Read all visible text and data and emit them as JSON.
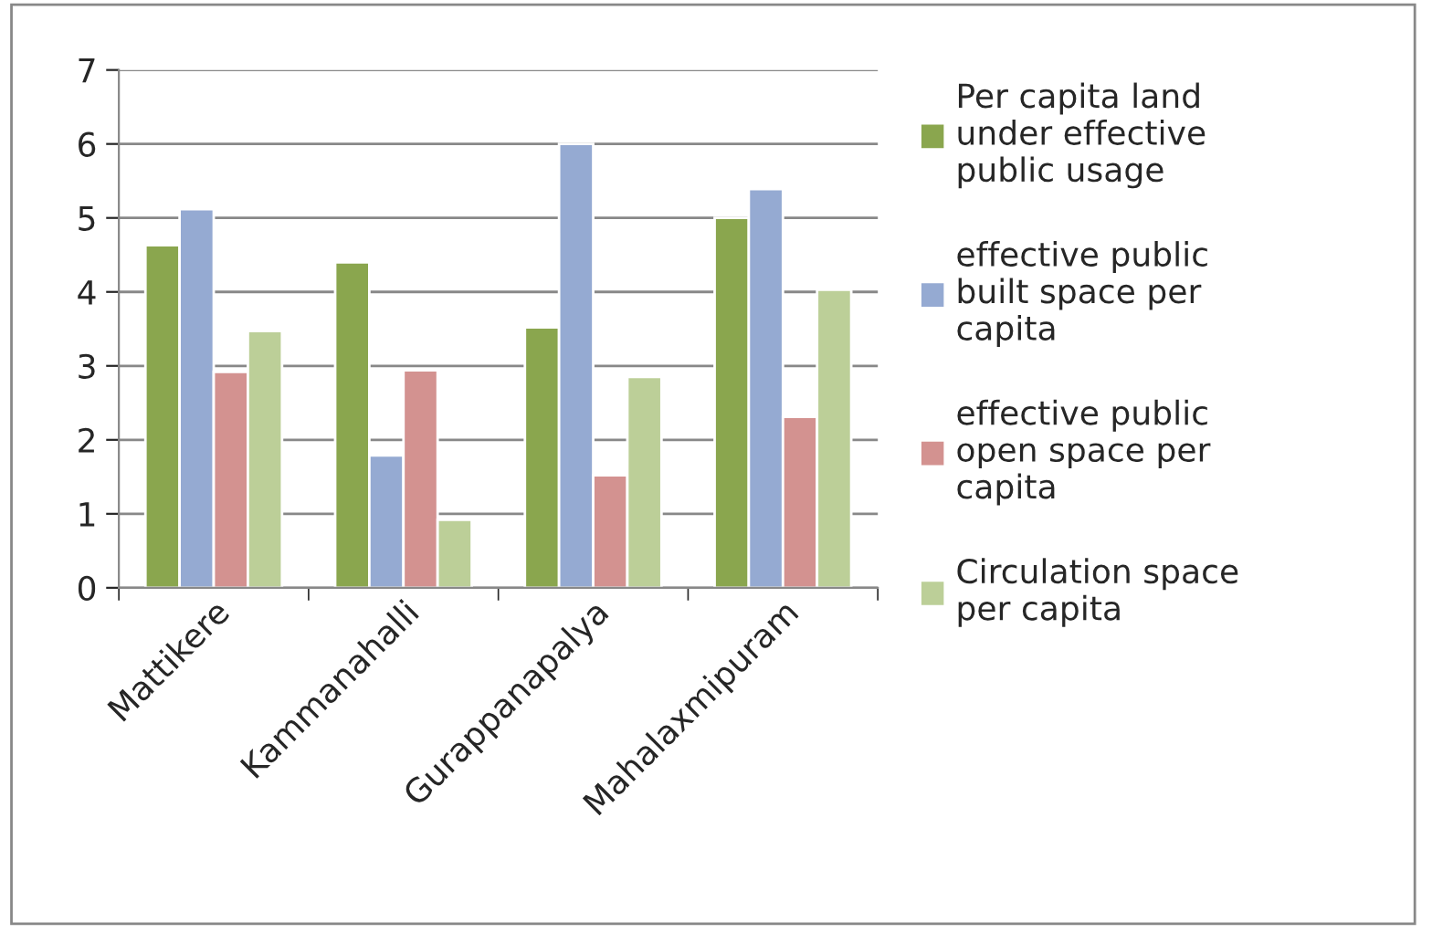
{
  "chart_data": {
    "type": "bar",
    "categories": [
      "Mattikere",
      "Kammanahalli",
      "Gurappanapalya",
      "Mahalaxmipuram"
    ],
    "series": [
      {
        "name": "Per capita land under effective public usage",
        "color": "#8aa64e",
        "values": [
          4.63,
          4.4,
          3.52,
          5.0
        ]
      },
      {
        "name": "effective public built space per capita",
        "color": "#95aad2",
        "values": [
          5.12,
          1.79,
          6.0,
          5.39
        ]
      },
      {
        "name": "effective public open space per capita",
        "color": "#d39290",
        "values": [
          2.92,
          2.94,
          1.52,
          2.31
        ]
      },
      {
        "name": "Circulation space per capita",
        "color": "#bccf98",
        "values": [
          3.47,
          0.92,
          2.85,
          4.03
        ]
      }
    ],
    "ylim": [
      0,
      7
    ],
    "yticks": [
      0,
      1,
      2,
      3,
      4,
      5,
      6,
      7
    ],
    "grid": "y",
    "legend": "right"
  }
}
